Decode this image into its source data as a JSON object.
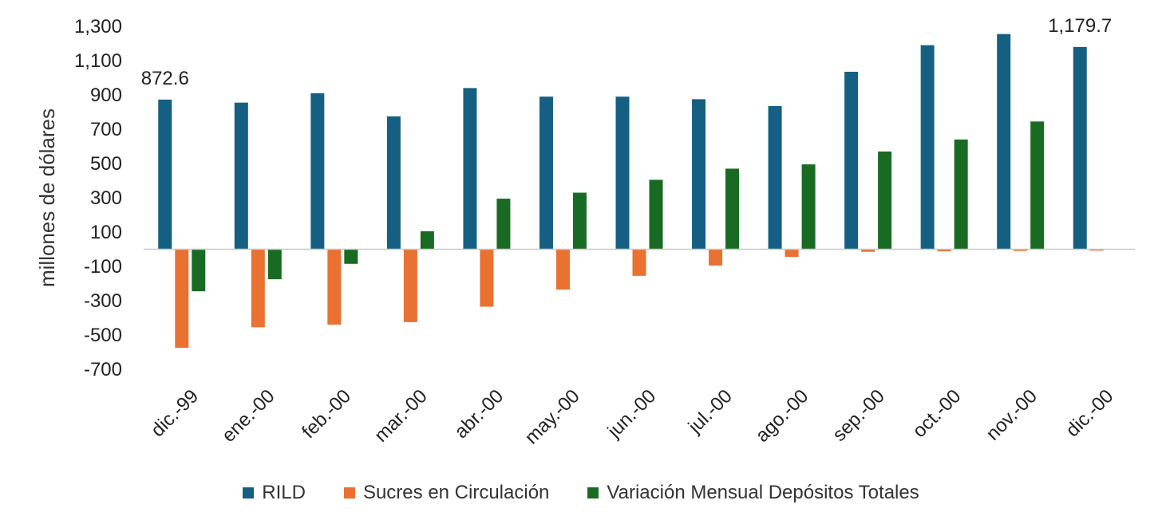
{
  "chart_data": {
    "type": "bar",
    "categories": [
      "dic.-99",
      "ene.-00",
      "feb.-00",
      "mar.-00",
      "abr.-00",
      "may.-00",
      "jun.-00",
      "jul.-00",
      "ago.-00",
      "sep.-00",
      "oct.-00",
      "nov.-00",
      "dic.-00"
    ],
    "series": [
      {
        "name": "RILD",
        "color": "#156082",
        "values": [
          872.6,
          855,
          910,
          775,
          940,
          890,
          890,
          875,
          835,
          1035,
          1190,
          1255,
          1179.7
        ]
      },
      {
        "name": "Sucres en Circulación",
        "color": "#E97132",
        "values": [
          -575,
          -455,
          -440,
          -425,
          -335,
          -235,
          -155,
          -95,
          -45,
          -15,
          -12,
          -10,
          -8
        ]
      },
      {
        "name": "Variación Mensual Depósitos Totales",
        "color": "#196B24",
        "values": [
          -245,
          -175,
          -85,
          105,
          295,
          330,
          405,
          470,
          495,
          570,
          640,
          745,
          null
        ]
      }
    ],
    "ylabel": "millones de dólares",
    "ylim": [
      -700,
      1300
    ],
    "yticks": [
      1300,
      1100,
      900,
      700,
      500,
      300,
      100,
      -100,
      -300,
      -500,
      -700
    ],
    "ytick_labels": [
      "1,300",
      "1,100",
      "900",
      "700",
      "500",
      "300",
      "100",
      "-100",
      "-300",
      "-500",
      "-700"
    ],
    "data_labels": [
      {
        "series": "RILD",
        "category": "dic.-99",
        "text": "872.6"
      },
      {
        "series": "RILD",
        "category": "dic.-00",
        "text": "1,179.7"
      }
    ],
    "legend_position": "bottom",
    "grid": false
  }
}
